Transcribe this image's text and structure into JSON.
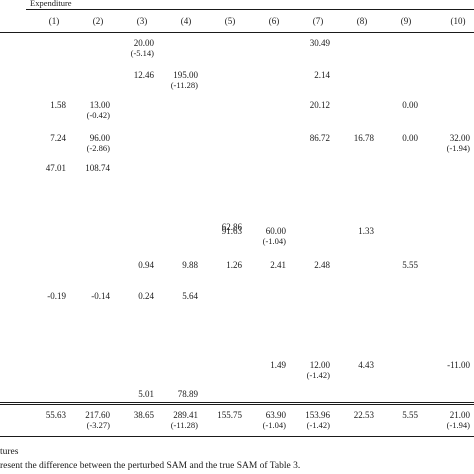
{
  "table": {
    "group_header": "Expenditure",
    "columns": [
      "(1)",
      "(2)",
      "(3)",
      "(4)",
      "(5)",
      "(6)",
      "(7)",
      "(8)",
      "(9)",
      "(10)"
    ],
    "rows": [
      [
        null,
        null,
        {
          "v": "20.00",
          "d": "(-5.14)"
        },
        null,
        null,
        null,
        {
          "v": "30.49"
        },
        null,
        null,
        null
      ],
      [
        null,
        null,
        {
          "v": "12.46"
        },
        {
          "v": "195.00",
          "d": "(-11.28)"
        },
        null,
        null,
        {
          "v": "2.14"
        },
        null,
        null,
        null
      ],
      [
        {
          "v": "1.58"
        },
        {
          "v": "13.00",
          "d": "(-0.42)"
        },
        null,
        null,
        null,
        null,
        {
          "v": "20.12"
        },
        null,
        {
          "v": "0.00"
        },
        null
      ],
      [
        {
          "v": "7.24"
        },
        {
          "v": "96.00",
          "d": "(-2.86)"
        },
        null,
        null,
        null,
        null,
        {
          "v": "86.72"
        },
        {
          "v": "16.78"
        },
        {
          "v": "0.00"
        },
        {
          "v": "32.00",
          "d": "(-1.94)"
        }
      ],
      [
        {
          "v": "47.01"
        },
        {
          "v": "108.74"
        },
        null,
        null,
        null,
        null,
        null,
        null,
        null,
        null
      ],
      [
        null,
        null,
        null,
        null,
        {
          "v": "62.86"
        },
        null,
        null,
        null,
        null,
        null
      ],
      [
        null,
        null,
        null,
        null,
        {
          "v": "91.63"
        },
        {
          "v": "60.00",
          "d": "(-1.04)"
        },
        null,
        {
          "v": "1.33"
        },
        null,
        null
      ],
      [
        null,
        null,
        {
          "v": "0.94"
        },
        {
          "v": "9.88"
        },
        {
          "v": "1.26"
        },
        {
          "v": "2.41"
        },
        {
          "v": "2.48"
        },
        null,
        {
          "v": "5.55"
        },
        null
      ],
      [
        {
          "v": "-0.19"
        },
        {
          "v": "-0.14"
        },
        {
          "v": "0.24"
        },
        {
          "v": "5.64"
        },
        null,
        null,
        null,
        null,
        null,
        null
      ],
      [
        null,
        null,
        null,
        null,
        null,
        {
          "v": "1.49"
        },
        {
          "v": "12.00",
          "d": "(-1.42)"
        },
        {
          "v": "4.43"
        },
        null,
        {
          "v": "-11.00"
        }
      ],
      [
        null,
        null,
        {
          "v": "5.01"
        },
        {
          "v": "78.89"
        },
        null,
        null,
        null,
        null,
        null,
        null
      ]
    ],
    "totals": [
      {
        "v": "55.63"
      },
      {
        "v": "217.60",
        "d": "(-3.27)"
      },
      {
        "v": "38.65"
      },
      {
        "v": "289.41",
        "d": "(-11.28)"
      },
      {
        "v": "155.75"
      },
      {
        "v": "63.90",
        "d": "(-1.04)"
      },
      {
        "v": "153.96",
        "d": "(-1.42)"
      },
      {
        "v": "22.53"
      },
      {
        "v": "5.55"
      },
      {
        "v": "21.00",
        "d": "(-1.94)"
      }
    ]
  },
  "notes": {
    "line1": "tures",
    "line2": "resent the difference between the perturbed SAM and the true SAM of Table 3."
  }
}
